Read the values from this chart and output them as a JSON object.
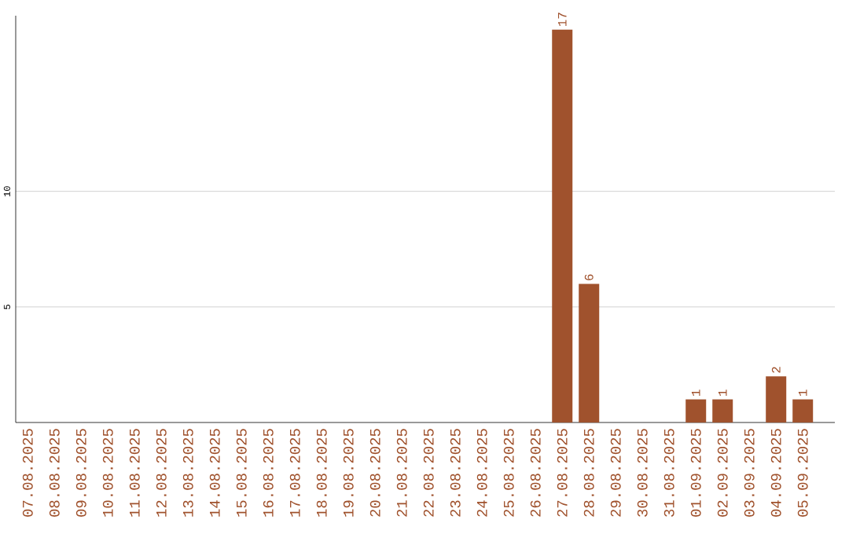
{
  "chart_data": {
    "type": "bar",
    "categories": [
      "07.08.2025",
      "08.08.2025",
      "09.08.2025",
      "10.08.2025",
      "11.08.2025",
      "12.08.2025",
      "13.08.2025",
      "14.08.2025",
      "15.08.2025",
      "16.08.2025",
      "17.08.2025",
      "18.08.2025",
      "19.08.2025",
      "20.08.2025",
      "21.08.2025",
      "22.08.2025",
      "23.08.2025",
      "24.08.2025",
      "25.08.2025",
      "26.08.2025",
      "27.08.2025",
      "28.08.2025",
      "29.08.2025",
      "30.08.2025",
      "31.08.2025",
      "01.09.2025",
      "02.09.2025",
      "03.09.2025",
      "04.09.2025",
      "05.09.2025"
    ],
    "values": [
      0,
      0,
      0,
      0,
      0,
      0,
      0,
      0,
      0,
      0,
      0,
      0,
      0,
      0,
      0,
      0,
      0,
      0,
      0,
      0,
      17,
      6,
      0,
      0,
      0,
      1,
      1,
      0,
      2,
      1
    ],
    "value_labels": [
      null,
      null,
      null,
      null,
      null,
      null,
      null,
      null,
      null,
      null,
      null,
      null,
      null,
      null,
      null,
      null,
      null,
      null,
      null,
      null,
      "17",
      "6",
      null,
      null,
      null,
      "1",
      "1",
      null,
      "2",
      "1"
    ],
    "color": "#a0522d",
    "ylim": [
      0,
      17.6
    ],
    "yticks": [
      5,
      10
    ],
    "grid": "y"
  }
}
